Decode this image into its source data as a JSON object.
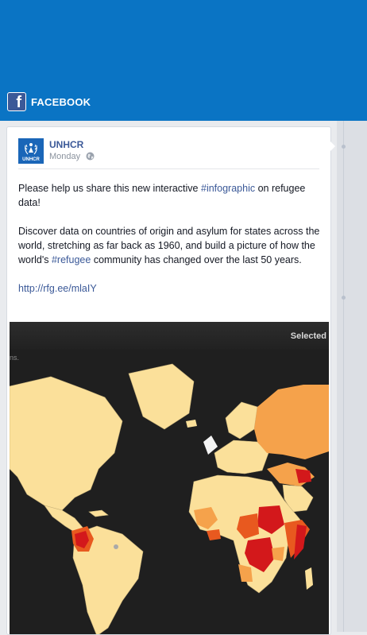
{
  "header": {
    "app_name": "FACEBOOK",
    "logo_letter": "f"
  },
  "post": {
    "page_name": "UNHCR",
    "avatar_text": "UNHCR",
    "time": "Monday",
    "para1_a": "Please help us share this new interactive ",
    "hashtag1": "#infographic",
    "para1_b": " on refugee data!",
    "para2_a": "Discover data on countries of origin and asylum for states across the world, stretching as far back as 1960, and build a picture of how the world's ",
    "hashtag2": "#refugee",
    "para2_b": " community has changed over the last 50 years.",
    "link": "http://rfg.ee/mlaIY"
  },
  "map": {
    "selected_label": "Selected",
    "note": "ns.",
    "colors": {
      "ocean": "#1f1f1f",
      "low": "#fbe09a",
      "mid": "#f5a24b",
      "high": "#e8591f",
      "highest": "#d3181b",
      "grey": "#a9a9a9",
      "white": "#f4f4f4"
    }
  }
}
